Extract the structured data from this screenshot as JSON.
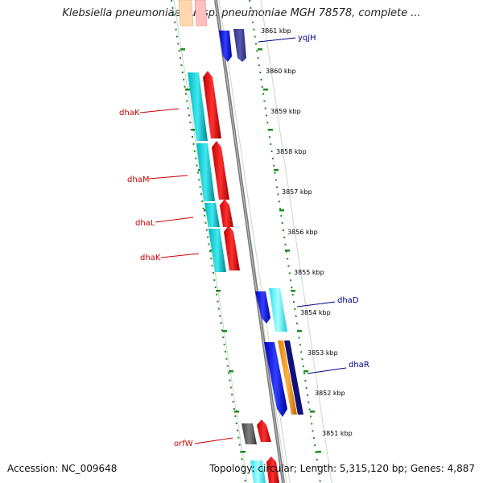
{
  "title": "Klebsiella pneumoniae subsp. pneumoniae MGH 78578, complete ...",
  "footer": {
    "accession": "Accession: NC_009648",
    "topology": "Topology: circular; Length: 5,315,120 bp; Genes: 4,887"
  },
  "ticks": [
    "3861 kbp",
    "3860 kbp",
    "3859 kbp",
    "3858 kbp",
    "3857 kbp",
    "3856 kbp",
    "3855 kbp",
    "3854 kbp",
    "3853 kbp",
    "3852 kbp",
    "3851 kbp"
  ],
  "genes": [
    {
      "name": "yqjH",
      "strand": "plus",
      "color": "#00008b"
    },
    {
      "name": "dhaK",
      "strand": "minus",
      "color": "#cc0000"
    },
    {
      "name": "dhaM",
      "strand": "minus",
      "color": "#cc0000"
    },
    {
      "name": "dhaL",
      "strand": "minus",
      "color": "#cc0000"
    },
    {
      "name": "dhaK",
      "strand": "minus",
      "color": "#cc0000"
    },
    {
      "name": "dhaD",
      "strand": "plus",
      "color": "#00008b"
    },
    {
      "name": "dhaR",
      "strand": "plus",
      "color": "#00008b"
    },
    {
      "name": "orfW",
      "strand": "minus",
      "color": "#cc0000"
    }
  ]
}
